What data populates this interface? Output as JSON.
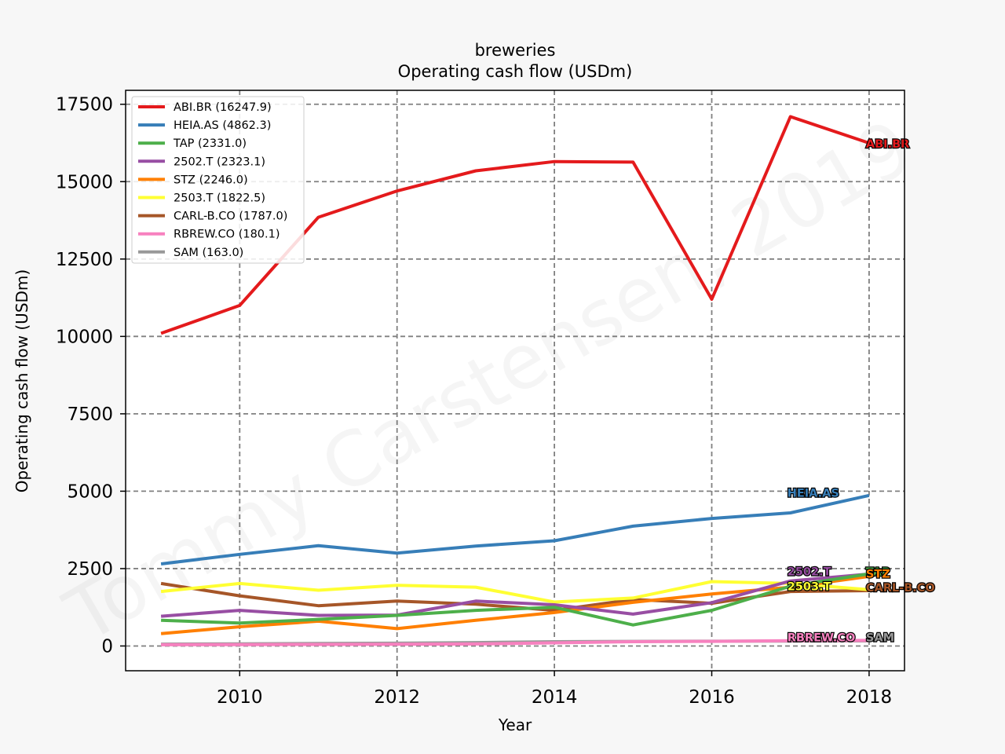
{
  "watermark": "Tommy Carstensen, 2019",
  "chart_data": {
    "type": "line",
    "title": "breweries",
    "subtitle": "Operating cash flow (USDm)",
    "xlabel": "Year",
    "ylabel": "Operating cash flow (USDm)",
    "x": [
      2009,
      2010,
      2011,
      2012,
      2013,
      2014,
      2015,
      2016,
      2017,
      2018
    ],
    "xlim": [
      2008.55,
      2018.45
    ],
    "ylim": [
      -800,
      17950
    ],
    "xticks": [
      2010,
      2012,
      2014,
      2016,
      2018
    ],
    "yticks": [
      0,
      2500,
      5000,
      7500,
      10000,
      12500,
      15000,
      17500
    ],
    "grid": true,
    "legend_position": "top-left",
    "series": [
      {
        "name": "ABI.BR",
        "legend": "ABI.BR (16247.9)",
        "color": "#e41a1c",
        "values": [
          10100,
          11000,
          13850,
          14700,
          15350,
          15650,
          15630,
          11200,
          17100,
          16248
        ]
      },
      {
        "name": "HEIA.AS",
        "legend": "HEIA.AS (4862.3)",
        "color": "#377eb8",
        "values": [
          2650,
          2960,
          3240,
          3000,
          3230,
          3400,
          3870,
          4120,
          4300,
          4862
        ]
      },
      {
        "name": "TAP",
        "legend": "TAP (2331.0)",
        "color": "#4daf4a",
        "values": [
          830,
          740,
          860,
          990,
          1150,
          1250,
          680,
          1150,
          1930,
          2331
        ]
      },
      {
        "name": "2502.T",
        "legend": "2502.T (2323.1)",
        "color": "#984ea3",
        "values": [
          960,
          1150,
          990,
          1000,
          1450,
          1330,
          1030,
          1400,
          2100,
          2323
        ]
      },
      {
        "name": "STZ",
        "legend": "STZ (2246.0)",
        "color": "#ff7f00",
        "values": [
          400,
          620,
          800,
          560,
          830,
          1080,
          1410,
          1680,
          1900,
          2246
        ]
      },
      {
        "name": "2503.T",
        "legend": "2503.T (1822.5)",
        "color": "#ffff33",
        "values": [
          1760,
          2020,
          1800,
          1960,
          1900,
          1420,
          1550,
          2080,
          2020,
          1822
        ]
      },
      {
        "name": "CARL-B.CO",
        "legend": "CARL-B.CO (1787.0)",
        "color": "#a65628",
        "values": [
          2020,
          1620,
          1300,
          1450,
          1350,
          1150,
          1500,
          1380,
          1760,
          1787
        ]
      },
      {
        "name": "RBREW.CO",
        "legend": "RBREW.CO (180.1)",
        "color": "#f781bf",
        "values": [
          40,
          45,
          50,
          55,
          65,
          100,
          140,
          150,
          170,
          180
        ]
      },
      {
        "name": "SAM",
        "legend": "SAM (163.0)",
        "color": "#999999",
        "values": [
          60,
          70,
          80,
          90,
          110,
          140,
          150,
          155,
          160,
          163
        ]
      }
    ],
    "end_labels": [
      {
        "text": "ABI.BR",
        "series": "ABI.BR",
        "x": 2018,
        "y": 16248
      },
      {
        "text": "HEIA.AS",
        "series": "HEIA.AS",
        "x": 2017,
        "y": 4970
      },
      {
        "text": "TAP",
        "series": "TAP",
        "x": 2018,
        "y": 2420
      },
      {
        "text": "2502.T",
        "series": "2502.T",
        "x": 2017,
        "y": 2440
      },
      {
        "text": "STZ",
        "series": "STZ",
        "x": 2018,
        "y": 2360
      },
      {
        "text": "2503.T",
        "series": "2503.T",
        "x": 2017,
        "y": 1950
      },
      {
        "text": "CARL-B.CO",
        "series": "CARL-B.CO",
        "x": 2018,
        "y": 1910
      },
      {
        "text": "RBREW.CO",
        "series": "RBREW.CO",
        "x": 2017,
        "y": 300
      },
      {
        "text": "SAM",
        "series": "SAM",
        "x": 2018,
        "y": 300
      }
    ]
  }
}
